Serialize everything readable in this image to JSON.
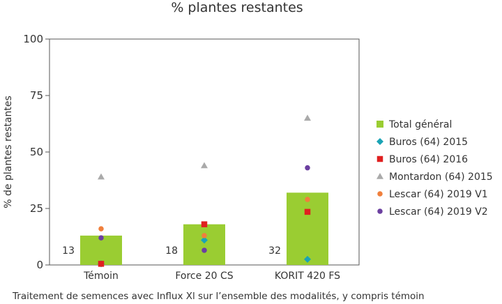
{
  "chart_data": {
    "type": "bar",
    "title": "% plantes restantes",
    "xlabel": "Traitement de semences avec Influx Xl sur l’ensemble des modalités, y compris témoin",
    "ylabel": "% de plantes restantes",
    "ylim": [
      0,
      100
    ],
    "yticks": [
      0,
      25,
      50,
      75,
      100
    ],
    "grid": false,
    "legend_position": "right",
    "categories": [
      "Témoin",
      "Force 20 CS",
      "KORIT 420 FS"
    ],
    "bars": {
      "name": "Total général",
      "color": "#9acd32",
      "values": [
        13,
        18,
        32
      ],
      "labels": [
        "13",
        "18",
        "32"
      ]
    },
    "series": [
      {
        "name": "Buros (64) 2015",
        "marker": "diamond",
        "color": "#1aa3b5",
        "values": [
          0.5,
          11,
          2.5
        ]
      },
      {
        "name": "Buros (64) 2016",
        "marker": "square",
        "color": "#e02020",
        "values": [
          0.5,
          18,
          23.5
        ]
      },
      {
        "name": "Montardon (64) 2015",
        "marker": "triangle",
        "color": "#aaaaaa",
        "values": [
          39,
          44,
          65
        ]
      },
      {
        "name": "Lescar (64) 2019 V1",
        "marker": "circle",
        "color": "#f07f3c",
        "values": [
          16,
          13,
          29
        ]
      },
      {
        "name": "Lescar (64) 2019 V2",
        "marker": "circle",
        "color": "#6b3fa0",
        "values": [
          12,
          6.5,
          43
        ]
      }
    ]
  }
}
